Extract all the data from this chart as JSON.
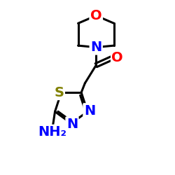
{
  "bg_color": "#ffffff",
  "bond_color": "#000000",
  "N_color": "#0000ff",
  "O_color": "#ff0000",
  "S_color": "#808000",
  "figsize": [
    2.5,
    2.5
  ],
  "dpi": 100,
  "xlim": [
    0,
    10
  ],
  "ylim": [
    0,
    10
  ]
}
